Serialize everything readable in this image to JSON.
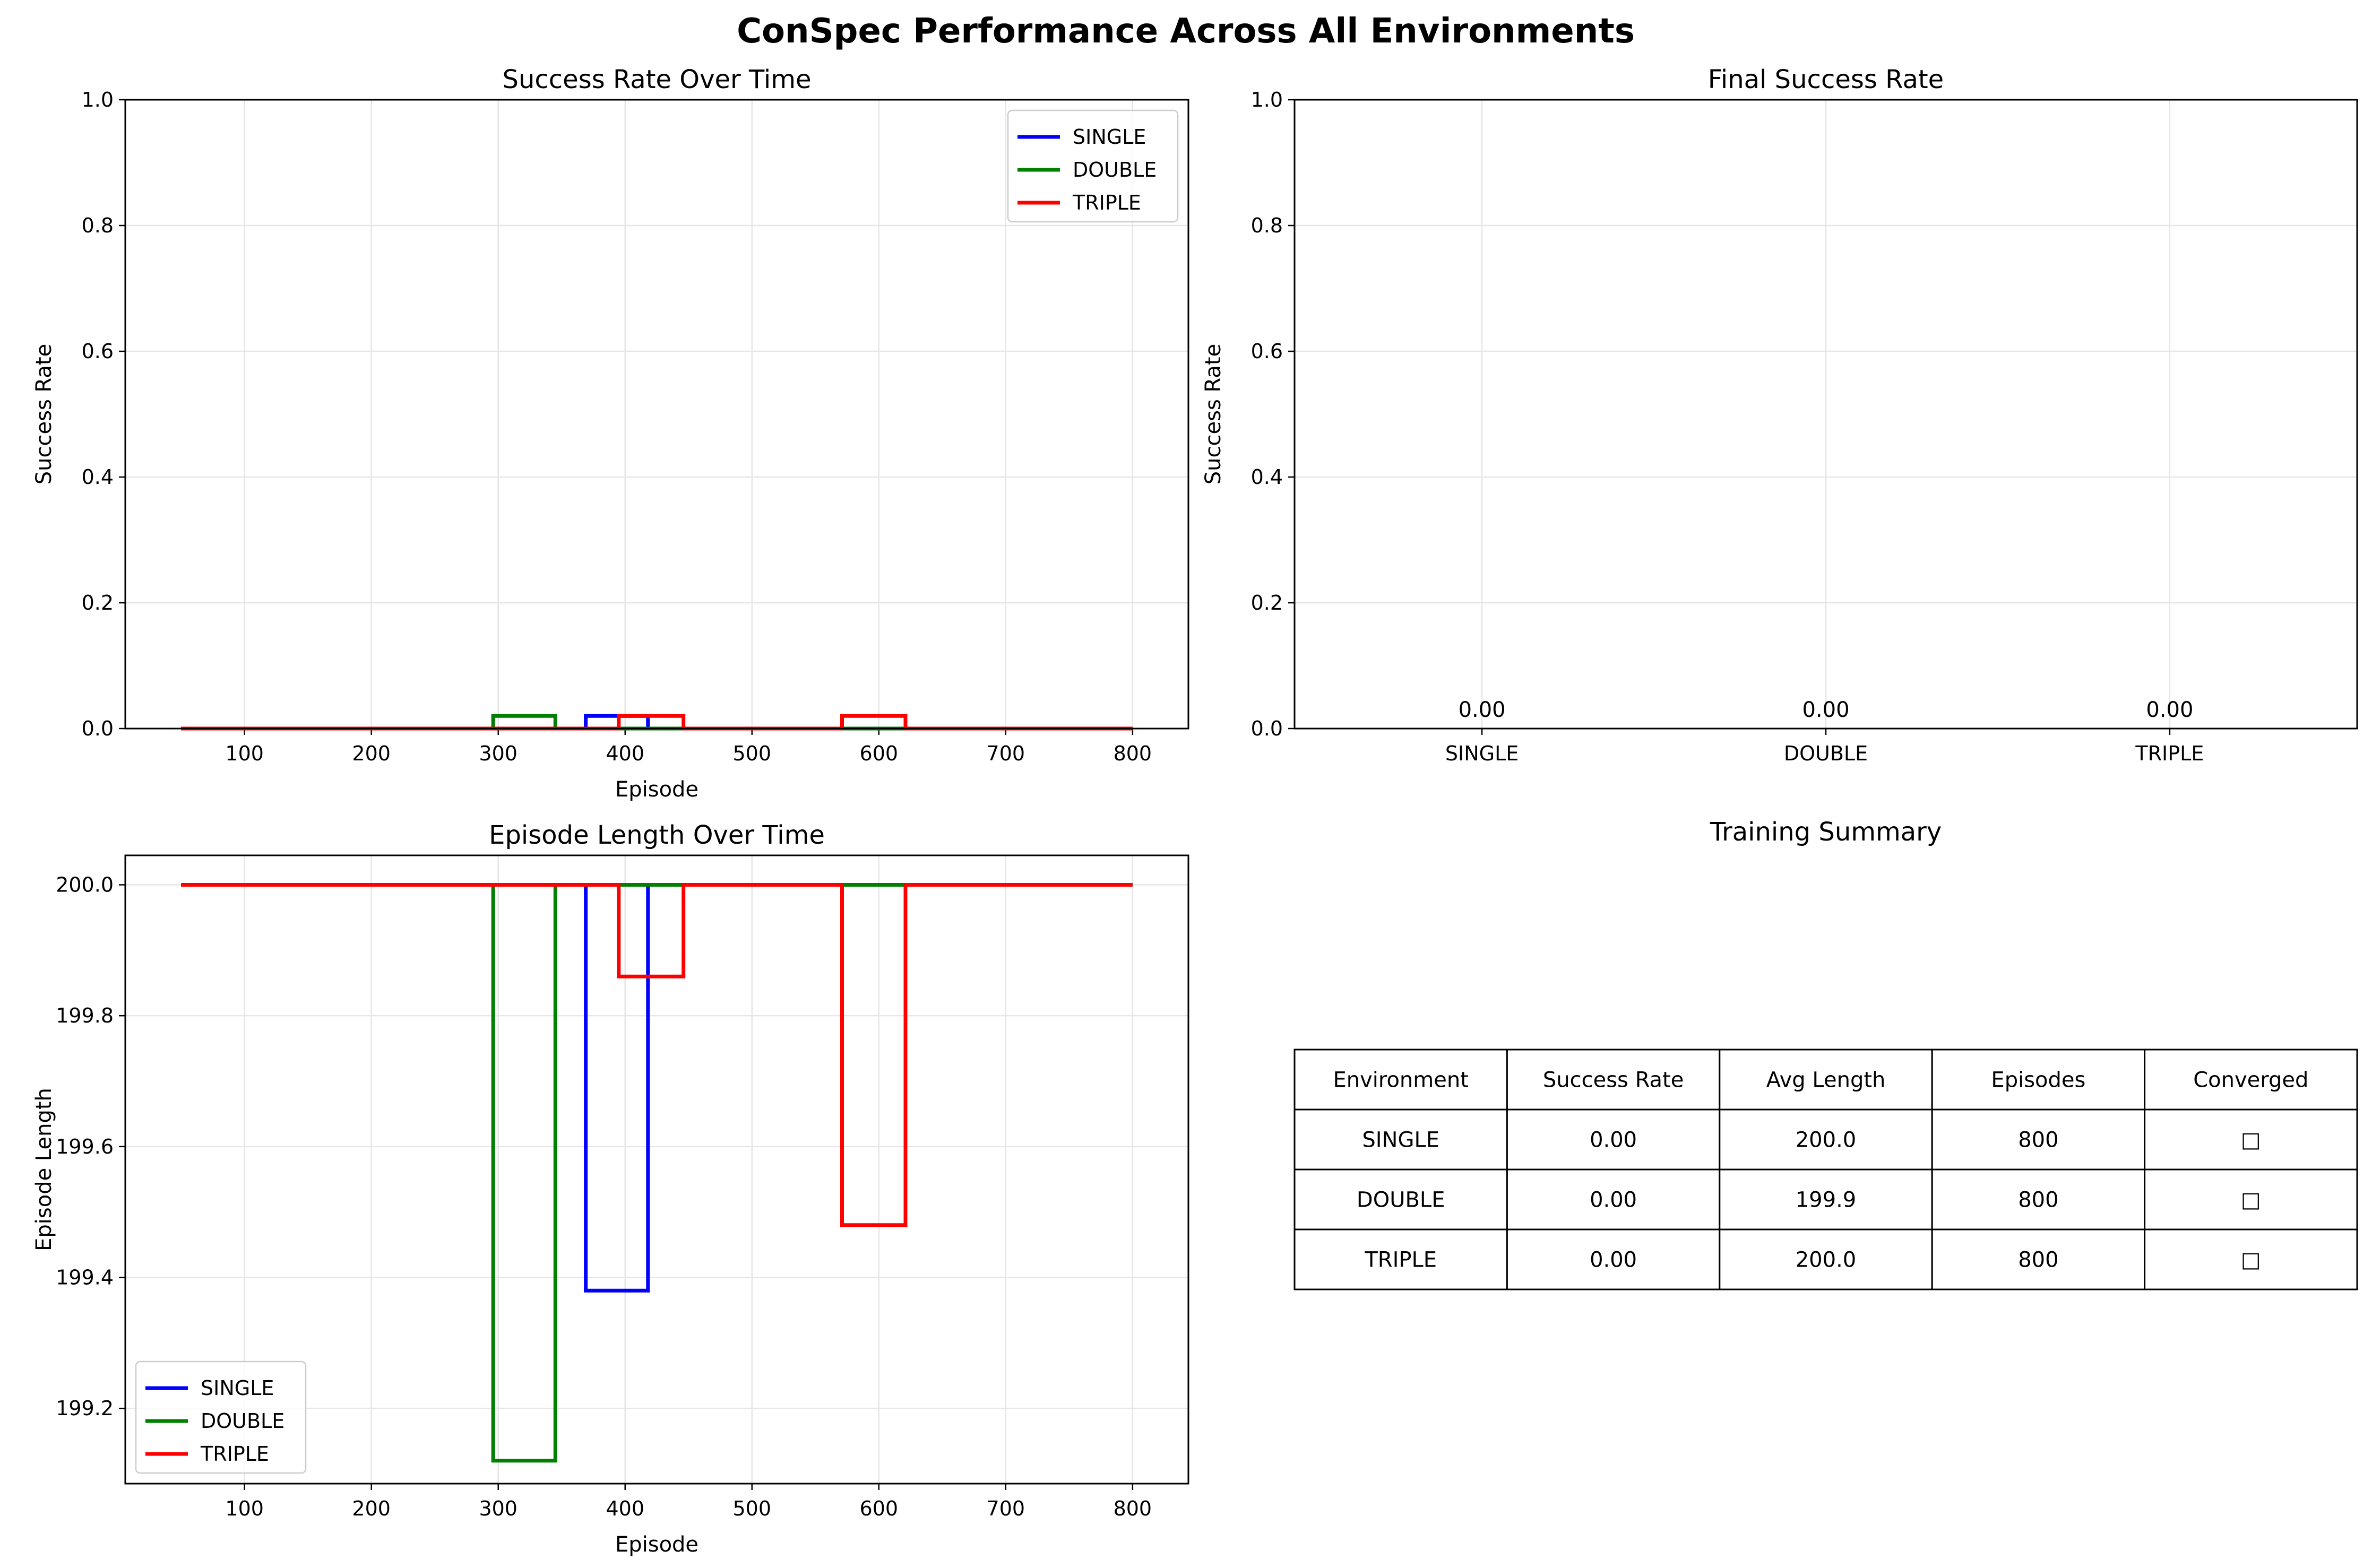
{
  "figure": {
    "title": "ConSpec Performance Across All Environments"
  },
  "colors": {
    "SINGLE": "#0000ff",
    "DOUBLE": "#008000",
    "TRIPLE": "#ff0000",
    "grid": "#e6e6e6",
    "axis": "#000000"
  },
  "chart_data": [
    {
      "id": "success_rate",
      "type": "line",
      "title": "Success Rate Over Time",
      "xlabel": "Episode",
      "ylabel": "Success Rate",
      "xlim": [
        6,
        844
      ],
      "ylim": [
        0,
        1
      ],
      "xticks": [
        100,
        200,
        300,
        400,
        500,
        600,
        700,
        800
      ],
      "yticks": [
        0.0,
        0.2,
        0.4,
        0.6,
        0.8,
        1.0
      ],
      "ytick_labels": [
        "0.0",
        "0.2",
        "0.4",
        "0.6",
        "0.8",
        "1.0"
      ],
      "grid": true,
      "legend": "top-right",
      "series": [
        {
          "name": "SINGLE",
          "x": [
            50,
            369,
            369,
            418,
            418,
            800
          ],
          "y": [
            0,
            0,
            0.02,
            0.02,
            0,
            0
          ]
        },
        {
          "name": "DOUBLE",
          "x": [
            50,
            296,
            296,
            345,
            345,
            800
          ],
          "y": [
            0,
            0,
            0.02,
            0.02,
            0,
            0
          ]
        },
        {
          "name": "TRIPLE",
          "x": [
            50,
            395,
            395,
            446,
            446,
            571,
            571,
            621,
            621,
            800
          ],
          "y": [
            0,
            0,
            0.02,
            0.02,
            0,
            0,
            0.02,
            0.02,
            0,
            0
          ]
        }
      ]
    },
    {
      "id": "final_success",
      "type": "bar",
      "title": "Final Success Rate",
      "xlabel": "",
      "ylabel": "Success Rate",
      "ylim": [
        0,
        1
      ],
      "yticks": [
        0.0,
        0.2,
        0.4,
        0.6,
        0.8,
        1.0
      ],
      "ytick_labels": [
        "0.0",
        "0.2",
        "0.4",
        "0.6",
        "0.8",
        "1.0"
      ],
      "grid": true,
      "categories": [
        "SINGLE",
        "DOUBLE",
        "TRIPLE"
      ],
      "values": [
        0.0,
        0.0,
        0.0
      ],
      "value_labels": [
        "0.00",
        "0.00",
        "0.00"
      ]
    },
    {
      "id": "episode_length",
      "type": "line",
      "title": "Episode Length Over Time",
      "xlabel": "Episode",
      "ylabel": "Episode Length",
      "xlim": [
        6,
        844
      ],
      "ylim": [
        199.085,
        200.045
      ],
      "xticks": [
        100,
        200,
        300,
        400,
        500,
        600,
        700,
        800
      ],
      "yticks": [
        199.2,
        199.4,
        199.6,
        199.8,
        200.0
      ],
      "ytick_labels": [
        "199.2",
        "199.4",
        "199.6",
        "199.8",
        "200.0"
      ],
      "grid": true,
      "legend": "bottom-left",
      "series": [
        {
          "name": "SINGLE",
          "x": [
            50,
            369,
            369,
            418,
            418,
            800
          ],
          "y": [
            200,
            200,
            199.38,
            199.38,
            200,
            200
          ]
        },
        {
          "name": "DOUBLE",
          "x": [
            50,
            296,
            296,
            345,
            345,
            800
          ],
          "y": [
            200,
            200,
            199.12,
            199.12,
            200,
            200
          ]
        },
        {
          "name": "TRIPLE",
          "x": [
            50,
            395,
            395,
            446,
            446,
            571,
            571,
            621,
            621,
            800
          ],
          "y": [
            200,
            200,
            199.86,
            199.86,
            200,
            200,
            199.48,
            199.48,
            200,
            200
          ]
        }
      ]
    },
    {
      "id": "training_summary",
      "type": "table",
      "title": "Training Summary",
      "columns": [
        "Environment",
        "Success Rate",
        "Avg Length",
        "Episodes",
        "Converged"
      ],
      "rows": [
        [
          "SINGLE",
          "0.00",
          "200.0",
          "800",
          "□"
        ],
        [
          "DOUBLE",
          "0.00",
          "199.9",
          "800",
          "□"
        ],
        [
          "TRIPLE",
          "0.00",
          "200.0",
          "800",
          "□"
        ]
      ]
    }
  ]
}
